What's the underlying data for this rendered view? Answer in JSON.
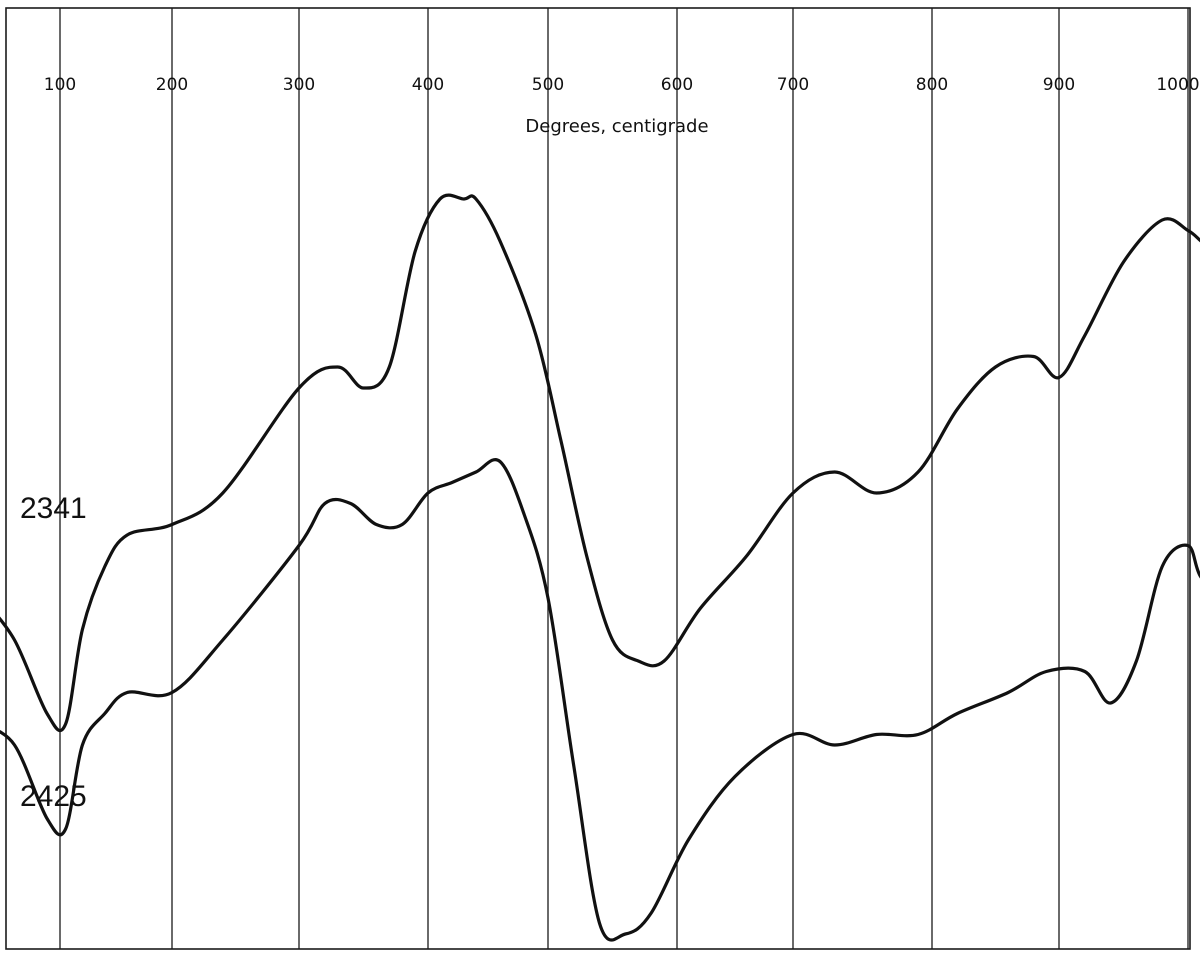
{
  "chart_data": {
    "type": "line",
    "xlabel": "Degrees, centigrade",
    "ylabel": "",
    "xlim": [
      50,
      1000
    ],
    "ylim": [
      0,
      100
    ],
    "x_ticks": [
      100,
      200,
      300,
      400,
      500,
      600,
      700,
      800,
      900,
      1000
    ],
    "grid": "vertical",
    "series": [
      {
        "name": "2341",
        "points": [
          [
            40,
            44
          ],
          [
            65,
            40
          ],
          [
            90,
            33
          ],
          [
            105,
            32
          ],
          [
            120,
            41
          ],
          [
            140,
            47
          ],
          [
            160,
            50
          ],
          [
            200,
            51
          ],
          [
            240,
            54
          ],
          [
            300,
            64
          ],
          [
            330,
            66
          ],
          [
            350,
            64
          ],
          [
            370,
            66
          ],
          [
            390,
            77
          ],
          [
            410,
            82
          ],
          [
            430,
            82
          ],
          [
            440,
            82
          ],
          [
            460,
            78
          ],
          [
            490,
            69
          ],
          [
            510,
            59
          ],
          [
            530,
            48
          ],
          [
            550,
            40
          ],
          [
            570,
            38
          ],
          [
            590,
            38
          ],
          [
            620,
            43
          ],
          [
            660,
            48
          ],
          [
            700,
            54
          ],
          [
            730,
            56
          ],
          [
            760,
            54
          ],
          [
            790,
            56
          ],
          [
            820,
            62
          ],
          [
            850,
            66
          ],
          [
            880,
            67
          ],
          [
            900,
            65
          ],
          [
            920,
            69
          ],
          [
            950,
            76
          ],
          [
            980,
            80
          ],
          [
            1000,
            79
          ],
          [
            1010,
            78
          ],
          [
            1020,
            77
          ]
        ]
      },
      {
        "name": "2425",
        "points": [
          [
            40,
            32
          ],
          [
            65,
            30
          ],
          [
            90,
            23
          ],
          [
            105,
            22
          ],
          [
            120,
            30
          ],
          [
            140,
            33
          ],
          [
            160,
            35
          ],
          [
            200,
            35
          ],
          [
            240,
            40
          ],
          [
            300,
            49
          ],
          [
            320,
            53
          ],
          [
            340,
            53
          ],
          [
            360,
            51
          ],
          [
            380,
            51
          ],
          [
            400,
            54
          ],
          [
            420,
            55
          ],
          [
            440,
            56
          ],
          [
            460,
            57
          ],
          [
            480,
            52
          ],
          [
            500,
            44
          ],
          [
            520,
            28
          ],
          [
            540,
            13
          ],
          [
            560,
            12
          ],
          [
            580,
            14
          ],
          [
            610,
            21
          ],
          [
            650,
            27
          ],
          [
            700,
            31
          ],
          [
            730,
            30
          ],
          [
            760,
            31
          ],
          [
            790,
            31
          ],
          [
            820,
            33
          ],
          [
            860,
            35
          ],
          [
            890,
            37
          ],
          [
            920,
            37
          ],
          [
            940,
            34
          ],
          [
            960,
            38
          ],
          [
            980,
            47
          ],
          [
            1000,
            49
          ],
          [
            1010,
            46
          ],
          [
            1030,
            44
          ]
        ]
      }
    ]
  }
}
